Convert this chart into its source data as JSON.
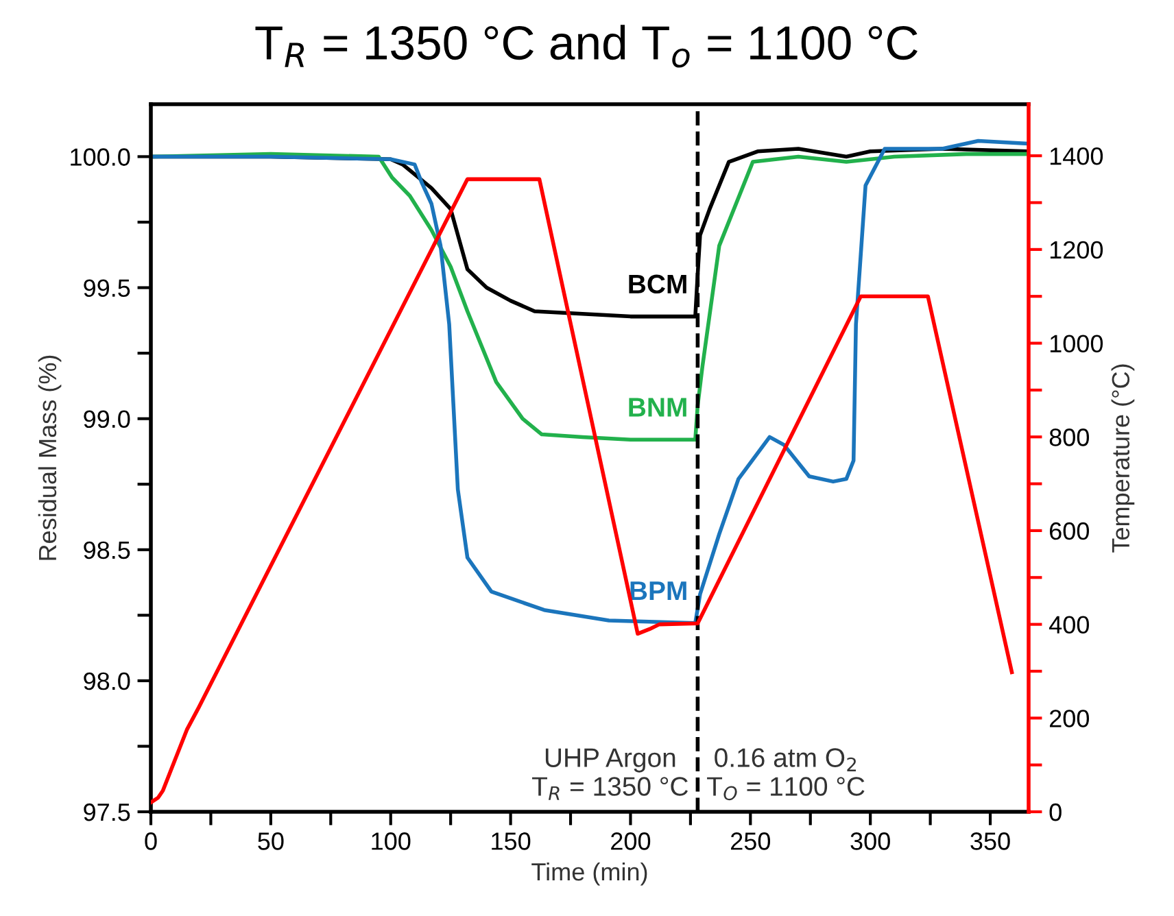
{
  "chart_data": {
    "type": "line",
    "title": "T$_{R}$ = 1350 °C and T$_{o}$ = 1100 °C",
    "xlabel": "Time (min)",
    "ylabel": "Residual Mass (%)",
    "y2label": "Temperature (°C)",
    "xlim": [
      0,
      366
    ],
    "xticks": [
      0,
      {
        "value": 25,
        "label": null
      },
      50,
      {
        "value": 75,
        "label": null
      },
      100,
      {
        "value": 125,
        "label": null
      },
      150,
      {
        "value": 175,
        "label": null
      },
      200,
      {
        "value": 225,
        "label": null
      },
      250,
      {
        "value": 275,
        "label": null
      },
      300,
      {
        "value": 325,
        "label": null
      },
      350
    ],
    "ylim": [
      97.5,
      100.2
    ],
    "yticks": [
      {
        "value": 97.5,
        "label": "97.5"
      },
      {
        "value": 97.75,
        "label": null
      },
      {
        "value": 98.0,
        "label": "98.0"
      },
      {
        "value": 98.25,
        "label": null
      },
      {
        "value": 98.5,
        "label": "98.5"
      },
      {
        "value": 98.75,
        "label": null
      },
      {
        "value": 99.0,
        "label": "99.0"
      },
      {
        "value": 99.25,
        "label": null
      },
      {
        "value": 99.5,
        "label": "99.5"
      },
      {
        "value": 99.75,
        "label": null
      },
      {
        "value": 100.0,
        "label": "100.0"
      }
    ],
    "y2lim": [
      0,
      1510
    ],
    "y2ticks": [
      0,
      {
        "value": 100,
        "label": null
      },
      200,
      {
        "value": 300,
        "label": null
      },
      400,
      {
        "value": 500,
        "label": null
      },
      600,
      {
        "value": 700,
        "label": null
      },
      800,
      {
        "value": 900,
        "label": null
      },
      1000,
      {
        "value": 1100,
        "label": null
      },
      1200,
      {
        "value": 1300,
        "label": null
      },
      1400
    ],
    "grid": false,
    "legend": false,
    "marker": "none",
    "line_style": "solid",
    "series": [
      {
        "name": "BCM",
        "color": "#000000",
        "x": [
          0,
          50,
          100,
          105,
          117,
          125,
          132,
          140,
          150,
          160,
          180,
          200,
          227,
          228,
          229,
          233,
          241,
          253,
          270,
          290,
          300,
          330,
          365
        ],
        "values": [
          100.0,
          100.0,
          99.99,
          99.97,
          99.88,
          99.8,
          99.57,
          99.5,
          99.45,
          99.41,
          99.4,
          99.39,
          99.39,
          99.55,
          99.7,
          99.8,
          99.98,
          100.02,
          100.03,
          100.0,
          100.02,
          100.03,
          100.02
        ]
      },
      {
        "name": "BNM",
        "color": "#22b14c",
        "x": [
          0,
          50,
          95,
          100.6,
          108,
          117,
          125,
          132,
          144,
          155,
          163,
          180,
          200,
          227,
          228,
          230,
          237,
          251,
          270,
          290,
          310,
          340,
          365
        ],
        "values": [
          100.0,
          100.01,
          100.0,
          99.92,
          99.85,
          99.72,
          99.58,
          99.41,
          99.14,
          99.0,
          98.94,
          98.93,
          98.92,
          98.92,
          99.05,
          99.2,
          99.66,
          99.98,
          100.0,
          99.98,
          100.0,
          100.01,
          100.01
        ],
        "axis": "y"
      },
      {
        "name": "BPM",
        "color": "#1b75bc",
        "x": [
          0,
          50,
          100,
          110,
          113,
          117,
          120.8,
          124.4,
          128,
          132,
          142,
          164,
          191,
          227,
          229,
          237,
          245,
          258,
          264,
          271,
          274.5,
          284.5,
          290,
          293,
          294,
          298,
          306,
          330,
          345,
          365
        ],
        "values": [
          100.0,
          100.0,
          99.99,
          99.97,
          99.9,
          99.82,
          99.66,
          99.36,
          98.73,
          98.47,
          98.34,
          98.27,
          98.23,
          98.22,
          98.33,
          98.56,
          98.77,
          98.93,
          98.9,
          98.82,
          98.78,
          98.76,
          98.77,
          98.84,
          99.36,
          99.89,
          100.03,
          100.03,
          100.06,
          100.05
        ]
      },
      {
        "color": "#ff0000",
        "axis": "y2",
        "x": [
          0,
          3,
          5,
          10,
          15,
          20,
          132,
          162,
          203,
          208,
          212,
          228,
          296,
          324,
          359
        ],
        "values": [
          20,
          30,
          45,
          110,
          175,
          223,
          1350,
          1350,
          380,
          390,
          400,
          402,
          1100,
          1100,
          298
        ]
      }
    ],
    "ref_lines": [
      {
        "axis": "x",
        "value": 228,
        "color": "#000000",
        "line_style": "dashed"
      }
    ],
    "annotations": [
      "UHP Argon\nT$_{R}$ = 1350 °C",
      "0.16 atm O$_{2}$\nT$_{O}$ = 1100 °C"
    ]
  }
}
